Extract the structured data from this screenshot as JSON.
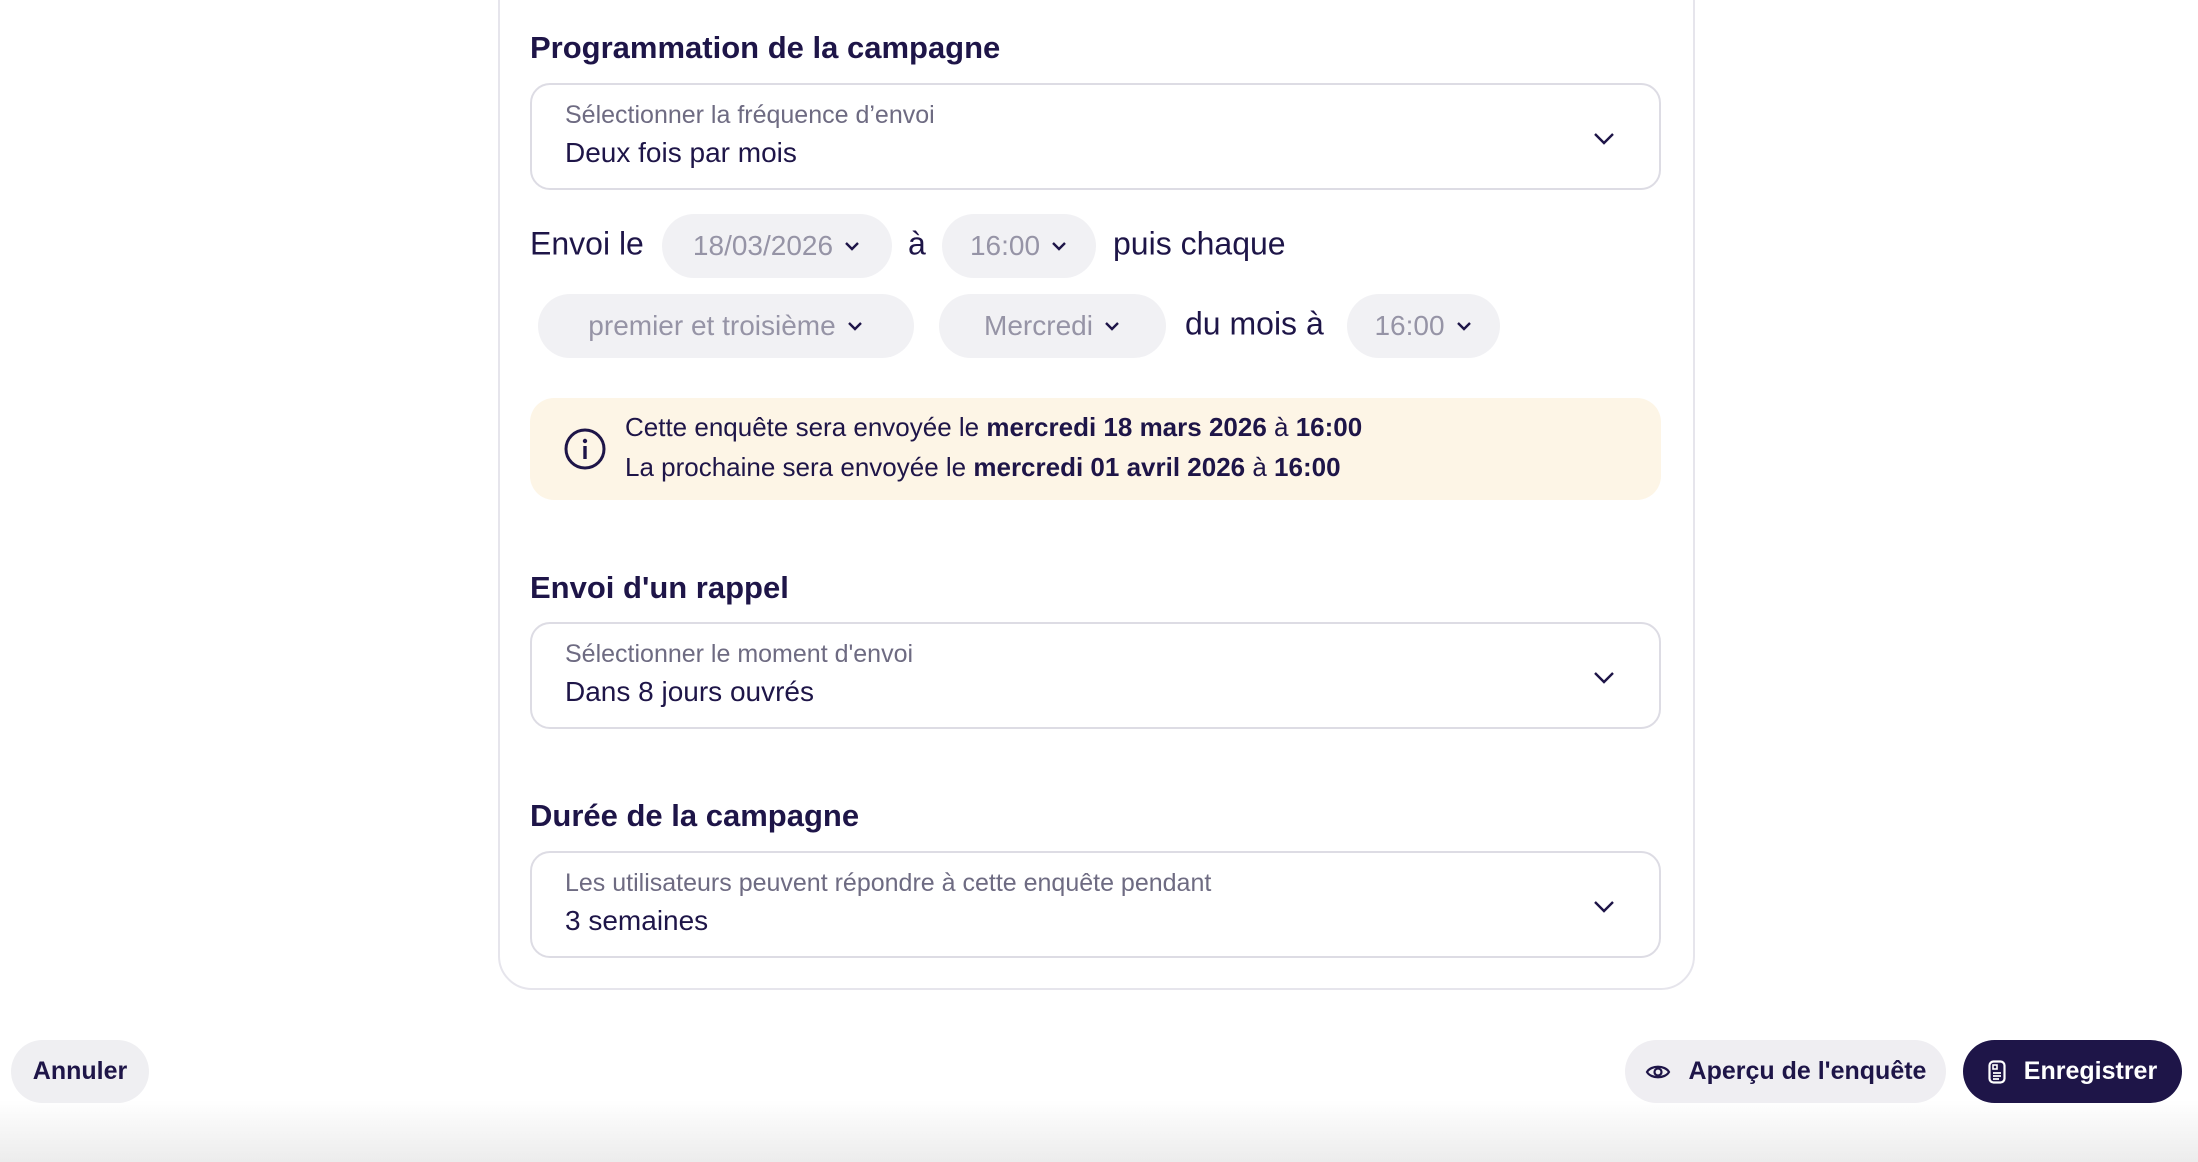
{
  "schedule": {
    "title": "Programmation de la campagne",
    "frequency_label": "Sélectionner la fréquence d’envoi",
    "frequency_value": "Deux fois par mois",
    "send_on": "Envoi le",
    "date": "18/03/2026",
    "at": "à",
    "time": "16:00",
    "then_each": "puis chaque",
    "occurrence": "premier et troisième",
    "weekday": "Mercredi",
    "of_month_at": "du mois à",
    "repeat_time": "16:00",
    "info": {
      "l1_pre": "Cette enquête sera envoyée le ",
      "l1_date": "mercredi 18 mars 2026",
      "l1_at": " à ",
      "l1_time": "16:00",
      "l2_pre": "La prochaine sera envoyée le ",
      "l2_date": "mercredi 01 avril 2026",
      "l2_at": " à ",
      "l2_time": "16:00"
    }
  },
  "reminder": {
    "title": "Envoi d'un rappel",
    "label": "Sélectionner le moment d'envoi",
    "value": "Dans 8 jours ouvrés"
  },
  "duration": {
    "title": "Durée de la campagne",
    "label": "Les utilisateurs peuvent répondre à cette enquête pendant",
    "value": "3 semaines"
  },
  "footer": {
    "cancel": "Annuler",
    "preview": "Aperçu de l'enquête",
    "save": "Enregistrer"
  },
  "colors": {
    "primary": "#1e1548",
    "info_bg": "#fdf5e6",
    "pill_bg": "#f1f1f4"
  }
}
